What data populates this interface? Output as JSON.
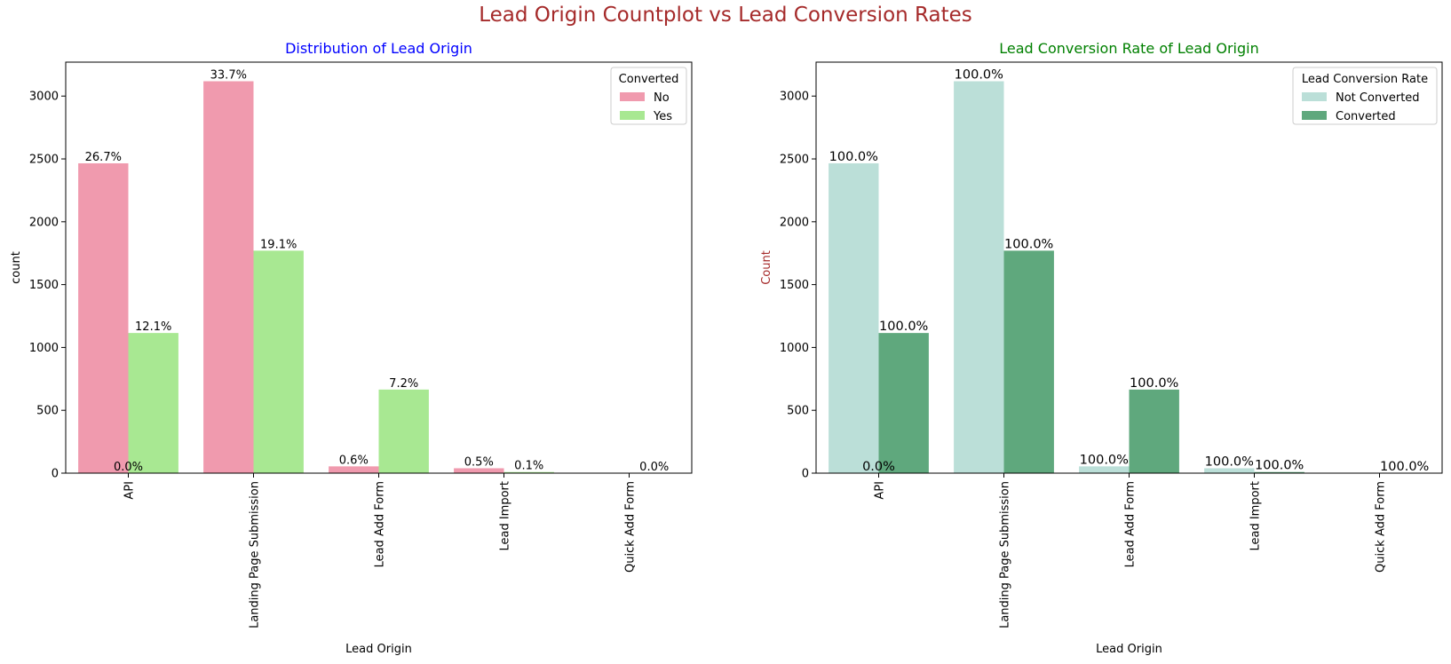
{
  "suptitle": "Lead Origin Countplot vs Lead Conversion Rates",
  "chart_data": [
    {
      "type": "bar",
      "title": "Distribution of Lead Origin",
      "title_color": "#0000ff",
      "xlabel": "Lead Origin",
      "ylabel": "count",
      "ylabel_color": "#000000",
      "ylim": [
        0,
        3270
      ],
      "yticks": [
        0,
        500,
        1000,
        1500,
        2000,
        2500,
        3000
      ],
      "categories": [
        "API",
        "Landing Page Submission",
        "Lead Add Form",
        "Lead Import",
        "Quick Add Form"
      ],
      "legend": {
        "title": "Converted",
        "position": "top-right"
      },
      "series": [
        {
          "name": "No",
          "color": "#f09aae",
          "values": [
            2465,
            3118,
            54,
            39,
            0
          ],
          "labels": [
            "26.7%",
            "33.7%",
            "0.6%",
            "0.5%",
            ""
          ]
        },
        {
          "name": "Yes",
          "color": "#a8e892",
          "values": [
            1115,
            1770,
            665,
            9,
            1
          ],
          "labels": [
            "12.1%",
            "19.1%",
            "7.2%",
            "0.1%",
            "0.0%"
          ]
        }
      ],
      "extra_labels": [
        {
          "category": "API",
          "text": "0.0%"
        }
      ]
    },
    {
      "type": "bar",
      "title": "Lead Conversion Rate of Lead Origin",
      "title_color": "#008000",
      "xlabel": "Lead Origin",
      "ylabel": "Count",
      "ylabel_color": "#a52a2a",
      "ylim": [
        0,
        3270
      ],
      "yticks": [
        0,
        500,
        1000,
        1500,
        2000,
        2500,
        3000
      ],
      "categories": [
        "API",
        "Landing Page Submission",
        "Lead Add Form",
        "Lead Import",
        "Quick Add Form"
      ],
      "legend": {
        "title": "Lead Conversion Rate",
        "position": "top-right"
      },
      "series": [
        {
          "name": "Not Converted",
          "color": "#bbdfd8",
          "values": [
            2465,
            3118,
            54,
            39,
            0
          ],
          "labels": [
            "100.0%",
            "100.0%",
            "100.0%",
            "100.0%",
            ""
          ]
        },
        {
          "name": "Converted",
          "color": "#5fa87d",
          "values": [
            1115,
            1770,
            665,
            9,
            1
          ],
          "labels": [
            "100.0%",
            "100.0%",
            "100.0%",
            "100.0%",
            "100.0%"
          ]
        }
      ],
      "extra_labels": [
        {
          "category": "API",
          "text": "0.0%"
        }
      ]
    }
  ]
}
